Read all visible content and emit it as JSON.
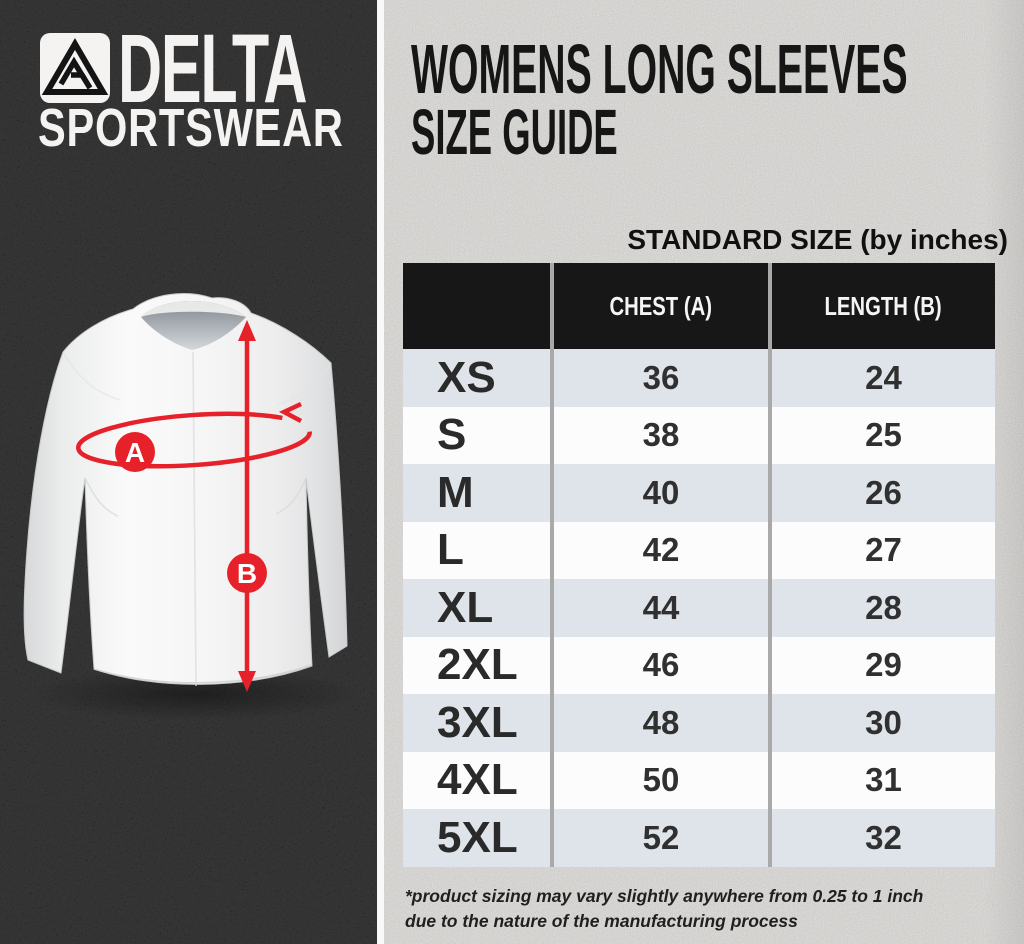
{
  "brand": {
    "name_top": "DELTA",
    "name_bottom": "SPORTSWEAR",
    "logo_icon": "delta-triangle-monogram"
  },
  "title": {
    "line1": "WOMENS LONG SLEEVES",
    "line2": "SIZE GUIDE"
  },
  "size_chart_heading": "STANDARD SIZE (by inches)",
  "diagram": {
    "garment": "white hooded long sleeve shirt",
    "marker_a": "A",
    "marker_b": "B"
  },
  "table": {
    "columns": [
      "",
      "CHEST (A)",
      "LENGTH (B)"
    ],
    "rows": [
      {
        "size": "XS",
        "chest": "36",
        "length": "24"
      },
      {
        "size": "S",
        "chest": "38",
        "length": "25"
      },
      {
        "size": "M",
        "chest": "40",
        "length": "26"
      },
      {
        "size": "L",
        "chest": "42",
        "length": "27"
      },
      {
        "size": "XL",
        "chest": "44",
        "length": "28"
      },
      {
        "size": "2XL",
        "chest": "46",
        "length": "29"
      },
      {
        "size": "3XL",
        "chest": "48",
        "length": "30"
      },
      {
        "size": "4XL",
        "chest": "50",
        "length": "31"
      },
      {
        "size": "5XL",
        "chest": "52",
        "length": "32"
      }
    ]
  },
  "footnote": {
    "line1": "*product sizing may vary slightly anywhere from 0.25 to 1 inch",
    "line2": "due to the nature of the manufacturing process"
  },
  "colors": {
    "accent_red": "#e62129",
    "panel_black": "#161616",
    "header_black": "#171717",
    "row_alt": "#dee4e9",
    "row_white": "#fcfcfc",
    "separator": "#a9a9a9",
    "paper": "#f2f1ee"
  }
}
